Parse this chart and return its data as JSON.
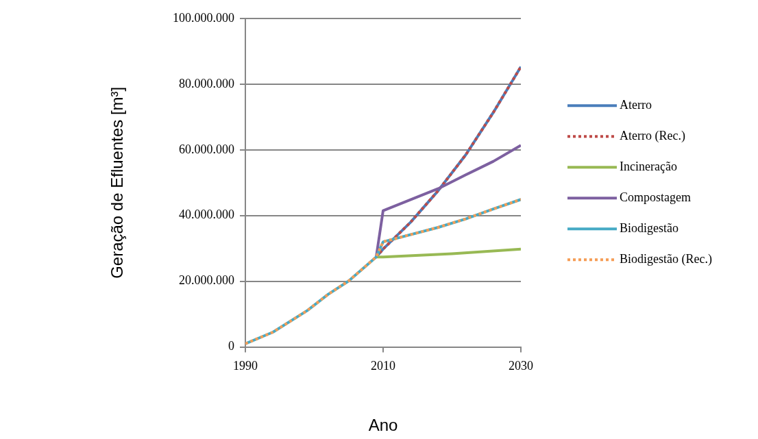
{
  "chart_data": {
    "type": "line",
    "xlabel": "Ano",
    "ylabel": "Geração de Efluentes [m³]",
    "xlim": [
      1990,
      2030
    ],
    "xticks": [
      1990,
      2010,
      2030
    ],
    "ylim": [
      0,
      100000000
    ],
    "yticks": [
      0,
      {
        "value": 20000000,
        "label": "20.000.000"
      },
      {
        "value": 40000000,
        "label": "40.000.000"
      },
      {
        "value": 60000000,
        "label": "60.000.000"
      },
      {
        "value": 80000000,
        "label": "80.000.000"
      },
      {
        "value": 100000000,
        "label": "100.000.000"
      }
    ],
    "grid": "y",
    "legend": "right",
    "marker": "none",
    "series": [
      {
        "name": "Aterro",
        "color": "#4a7ebb",
        "line_style": "solid",
        "x": [
          2009,
          2010,
          2014,
          2018,
          2022,
          2026,
          2030
        ],
        "values": [
          27400000,
          29800000,
          38000000,
          47600000,
          58500000,
          71400000,
          85300000
        ]
      },
      {
        "name": "Aterro (Rec.)",
        "color": "#be4b48",
        "line_style": "dotted",
        "x": [
          2009,
          2010,
          2014,
          2018,
          2022,
          2026,
          2030
        ],
        "values": [
          27400000,
          29800000,
          38000000,
          47600000,
          58500000,
          71400000,
          85300000
        ]
      },
      {
        "name": "Incineração",
        "color": "#98b954",
        "line_style": "solid",
        "x": [
          2009,
          2010,
          2020,
          2030
        ],
        "values": [
          27400000,
          27400000,
          28400000,
          29800000
        ]
      },
      {
        "name": "Compostagem",
        "color": "#7d60a0",
        "line_style": "solid",
        "x": [
          2009,
          2010,
          2018,
          2022,
          2026,
          2030
        ],
        "values": [
          27400000,
          41500000,
          48200000,
          52400000,
          56500000,
          61400000
        ]
      },
      {
        "name": "Biodigestão",
        "color": "#46aac5",
        "line_style": "solid",
        "x": [
          1990,
          1994,
          1999,
          2002,
          2005,
          2009,
          2010,
          2018,
          2022,
          2026,
          2030
        ],
        "values": [
          1000000,
          4500000,
          11100000,
          16000000,
          20100000,
          27400000,
          32000000,
          36400000,
          39000000,
          42000000,
          44900000
        ]
      },
      {
        "name": "Biodigestão (Rec.)",
        "color": "#f59d56",
        "line_style": "dotted",
        "x": [
          1990,
          1994,
          1999,
          2002,
          2005,
          2009,
          2010,
          2018,
          2022,
          2026,
          2030
        ],
        "values": [
          1000000,
          4500000,
          11100000,
          16000000,
          20100000,
          27400000,
          32000000,
          36400000,
          39000000,
          42000000,
          44900000
        ]
      }
    ]
  }
}
